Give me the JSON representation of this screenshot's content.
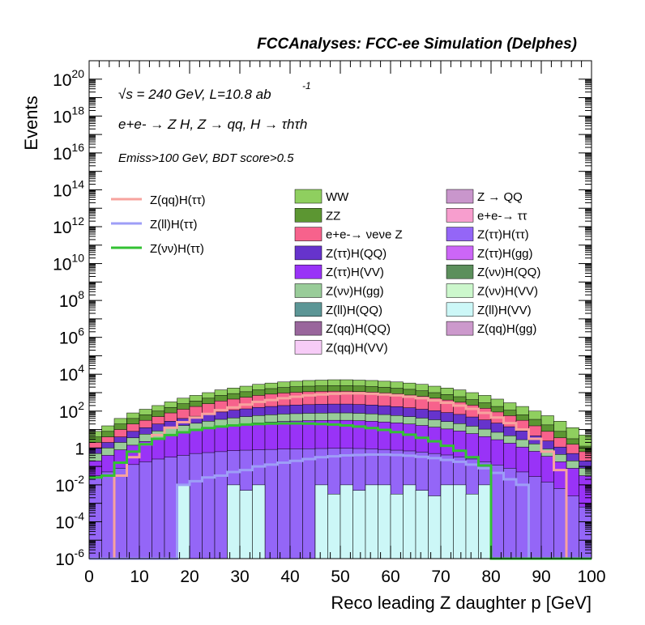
{
  "chart_data": {
    "type": "area",
    "title": "FCCAnalyses: FCC-ee Simulation (Delphes)",
    "xlabel": "Reco leading Z daughter p [GeV]",
    "ylabel": "Events",
    "xlim": [
      0,
      100
    ],
    "ylim": [
      1e-06,
      1e+21
    ],
    "yscale": "log",
    "x_ticks": [
      "0",
      "10",
      "20",
      "30",
      "40",
      "50",
      "60",
      "70",
      "80",
      "90",
      "100"
    ],
    "y_ticks": [
      {
        "base": "10",
        "exp": "-6",
        "value": 1e-06
      },
      {
        "base": "10",
        "exp": "-4",
        "value": 0.0001
      },
      {
        "base": "10",
        "exp": "-2",
        "value": 0.01
      },
      {
        "base": "1",
        "exp": "",
        "value": 1
      },
      {
        "base": "10",
        "exp": "2",
        "value": 100.0
      },
      {
        "base": "10",
        "exp": "4",
        "value": 10000.0
      },
      {
        "base": "10",
        "exp": "6",
        "value": 1000000.0
      },
      {
        "base": "10",
        "exp": "8",
        "value": 100000000.0
      },
      {
        "base": "10",
        "exp": "10",
        "value": 10000000000.0
      },
      {
        "base": "10",
        "exp": "12",
        "value": 1000000000000.0
      },
      {
        "base": "10",
        "exp": "14",
        "value": 100000000000000.0
      },
      {
        "base": "10",
        "exp": "16",
        "value": 1e+16
      },
      {
        "base": "10",
        "exp": "18",
        "value": 1e+18
      },
      {
        "base": "10",
        "exp": "20",
        "value": 1e+20
      }
    ],
    "annotations": {
      "energy": "√s = 240 GeV, L=10.8 ab",
      "energy_exp": "-1",
      "process": "e+e- → Z H, Z → qq, H → τhτh",
      "selection": "Emiss>100 GeV, BDT score>0.5"
    },
    "signal_legend": [
      {
        "name": "Z(qq)H(ττ)",
        "color": "#f7a39e"
      },
      {
        "name": "Z(ll)H(ττ)",
        "color": "#9e9ef7"
      },
      {
        "name": "Z(νν)H(ττ)",
        "color": "#33c133"
      }
    ],
    "background_legend": [
      {
        "name": "WW",
        "color": "#8fcf5f"
      },
      {
        "name": "Z → QQ",
        "color": "#c996cc"
      },
      {
        "name": "ZZ",
        "color": "#5c9632"
      },
      {
        "name": "e+e-→ ττ",
        "color": "#f79ece"
      },
      {
        "name": "e+e-→ νeνe Z",
        "color": "#f7628c"
      },
      {
        "name": "Z(ττ)H(ττ)",
        "color": "#9466f7"
      },
      {
        "name": "Z(ττ)H(QQ)",
        "color": "#6633cc"
      },
      {
        "name": "Z(ττ)H(gg)",
        "color": "#cc66f7"
      },
      {
        "name": "Z(ττ)H(VV)",
        "color": "#9933f7"
      },
      {
        "name": "Z(νν)H(QQ)",
        "color": "#5c8f5c"
      },
      {
        "name": "Z(νν)H(gg)",
        "color": "#99cc99"
      },
      {
        "name": "Z(νν)H(VV)",
        "color": "#ccf7cc"
      },
      {
        "name": "Z(ll)H(QQ)",
        "color": "#5c9696"
      },
      {
        "name": "Z(ll)H(VV)",
        "color": "#ccf7f7"
      },
      {
        "name": "Z(qq)H(QQ)",
        "color": "#99669c"
      },
      {
        "name": "Z(qq)H(gg)",
        "color": "#cc99cc"
      },
      {
        "name": "Z(qq)H(VV)",
        "color": "#f7ccf7"
      }
    ],
    "stack_bands": [
      {
        "name": "WW",
        "color": "#8fcf5f",
        "logtop": [
          0.9,
          1.2,
          1.6,
          1.9,
          2.1,
          2.3,
          2.5,
          2.7,
          2.85,
          3.0,
          3.15,
          3.25,
          3.35,
          3.45,
          3.52,
          3.58,
          3.62,
          3.66,
          3.68,
          3.7,
          3.7,
          3.68,
          3.66,
          3.62,
          3.58,
          3.52,
          3.45,
          3.35,
          3.25,
          3.15,
          3.0,
          2.85,
          2.65,
          2.45,
          2.25,
          2.0,
          1.75,
          1.45,
          1.1,
          0.7
        ]
      },
      {
        "name": "ZZ",
        "color": "#5c9632",
        "logtop": [
          0.6,
          0.9,
          1.3,
          1.6,
          1.8,
          2.0,
          2.2,
          2.4,
          2.55,
          2.7,
          2.85,
          2.95,
          3.05,
          3.15,
          3.22,
          3.28,
          3.32,
          3.35,
          3.37,
          3.38,
          3.38,
          3.36,
          3.33,
          3.29,
          3.24,
          3.18,
          3.1,
          3.0,
          2.9,
          2.78,
          2.62,
          2.45,
          2.25,
          2.05,
          1.8,
          1.55,
          1.25,
          0.9,
          0.5,
          0.1
        ]
      },
      {
        "name": "e+e-→ νeνe Z",
        "color": "#f7628c",
        "logtop": [
          0.3,
          0.6,
          1.0,
          1.3,
          1.5,
          1.7,
          1.9,
          2.1,
          2.25,
          2.4,
          2.55,
          2.65,
          2.75,
          2.85,
          2.92,
          2.98,
          3.02,
          3.05,
          3.07,
          3.08,
          3.08,
          3.06,
          3.03,
          2.99,
          2.94,
          2.87,
          2.8,
          2.7,
          2.6,
          2.48,
          2.32,
          2.15,
          1.95,
          1.75,
          1.5,
          1.2,
          0.9,
          0.55,
          0.2,
          -0.2
        ]
      },
      {
        "name": "Z(ττ)H(QQ)",
        "color": "#6633cc",
        "logtop": [
          0.0,
          0.3,
          0.6,
          0.9,
          1.1,
          1.3,
          1.45,
          1.6,
          1.72,
          1.85,
          1.95,
          2.05,
          2.12,
          2.2,
          2.25,
          2.3,
          2.33,
          2.35,
          2.37,
          2.38,
          2.38,
          2.36,
          2.33,
          2.29,
          2.24,
          2.18,
          2.1,
          2.02,
          1.92,
          1.82,
          1.68,
          1.52,
          1.35,
          1.15,
          0.92,
          0.66,
          0.38,
          0.05,
          -0.3,
          -0.7
        ]
      },
      {
        "name": "Z(νν)H(gg)",
        "color": "#99cc99",
        "logtop": [
          -0.3,
          0.0,
          0.3,
          0.55,
          0.75,
          0.92,
          1.08,
          1.22,
          1.34,
          1.45,
          1.55,
          1.63,
          1.7,
          1.76,
          1.8,
          1.84,
          1.86,
          1.88,
          1.89,
          1.9,
          1.9,
          1.88,
          1.85,
          1.81,
          1.76,
          1.7,
          1.62,
          1.53,
          1.43,
          1.32,
          1.18,
          1.02,
          0.85,
          0.66,
          0.45,
          0.22,
          -0.05,
          -0.35,
          -0.7,
          -1.1
        ]
      },
      {
        "name": "Z(ττ)H(VV)",
        "color": "#9933f7",
        "logtop": [
          -0.7,
          -0.4,
          -0.1,
          0.15,
          0.35,
          0.52,
          0.68,
          0.82,
          0.94,
          1.05,
          1.15,
          1.23,
          1.3,
          1.36,
          1.4,
          1.44,
          1.46,
          1.48,
          1.49,
          1.5,
          1.5,
          1.48,
          1.45,
          1.41,
          1.36,
          1.3,
          1.22,
          1.13,
          1.03,
          0.92,
          0.78,
          0.62,
          0.45,
          0.26,
          0.05,
          -0.18,
          -0.45,
          -0.75,
          -1.1,
          -1.5
        ]
      },
      {
        "name": "Z(ττ)H(ττ)",
        "color": "#9466f7",
        "logtop": [
          -1.5,
          -1.3,
          -1.1,
          -0.9,
          -0.75,
          -0.6,
          -0.5,
          -0.4,
          -0.3,
          -0.25,
          -0.2,
          -0.15,
          -0.12,
          -0.1,
          -0.08,
          -0.06,
          -0.05,
          -0.04,
          -0.03,
          -0.02,
          -0.02,
          -0.03,
          -0.05,
          -0.08,
          -0.12,
          -0.16,
          -0.22,
          -0.3,
          -0.38,
          -0.48,
          -0.6,
          -0.75,
          -0.92,
          -1.1,
          -1.3,
          -1.55,
          -1.85,
          -2.2,
          -2.6,
          -3.2
        ]
      },
      {
        "name": "Z(ll)H(VV)",
        "color": "#ccf7f7",
        "logtop": [
          -6,
          -6,
          -6,
          -6,
          -6,
          -6,
          -6,
          -2,
          -6,
          -6,
          -6,
          -2,
          -2.3,
          -2,
          -6,
          -6,
          -6,
          -6,
          -2,
          -2.5,
          -2,
          -2.3,
          -2,
          -2,
          -2.5,
          -2,
          -2.3,
          -2.6,
          -2,
          -2,
          -2.5,
          -2,
          -6,
          -6,
          -6,
          -6,
          -6,
          -6,
          -6,
          -6
        ]
      }
    ],
    "signal_lines": [
      {
        "name": "Z(qq)H(ττ)",
        "color": "#f7a39e",
        "logy": [
          -6,
          -6,
          -1.5,
          -0.5,
          0.2,
          0.7,
          1.1,
          1.4,
          1.65,
          1.85,
          2.05,
          2.2,
          2.35,
          2.5,
          2.6,
          2.7,
          2.78,
          2.85,
          2.9,
          2.94,
          2.96,
          2.96,
          2.94,
          2.9,
          2.85,
          2.78,
          2.7,
          2.58,
          2.45,
          2.3,
          2.12,
          1.9,
          1.65,
          1.35,
          1.0,
          0.5,
          -0.2,
          -1.2,
          -6,
          -6
        ]
      },
      {
        "name": "Z(ll)H(ττ)",
        "color": "#9e9ef7",
        "logy": [
          -6,
          -6,
          -6,
          -6,
          -6,
          -6,
          -6,
          -2,
          -1.8,
          -1.6,
          -1.5,
          -1.3,
          -1.2,
          -1.0,
          -0.9,
          -0.8,
          -0.7,
          -0.6,
          -0.5,
          -0.45,
          -0.4,
          -0.38,
          -0.36,
          -0.36,
          -0.38,
          -0.42,
          -0.48,
          -0.55,
          -0.65,
          -0.75,
          -0.9,
          -1.1,
          -1.35,
          -1.7,
          -2.0,
          -6,
          -6,
          -6,
          -6,
          -6
        ]
      },
      {
        "name": "Z(νν)H(ττ)",
        "color": "#33c133",
        "logy": [
          -1.6,
          -1.5,
          -0.8,
          -0.2,
          0.2,
          0.5,
          0.7,
          0.85,
          0.98,
          1.08,
          1.16,
          1.22,
          1.27,
          1.3,
          1.32,
          1.33,
          1.33,
          1.32,
          1.3,
          1.27,
          1.22,
          1.16,
          1.08,
          0.98,
          0.86,
          0.72,
          0.55,
          0.36,
          0.12,
          -0.15,
          -0.5,
          -0.95,
          -6,
          -6,
          -6,
          -6,
          -6,
          -6,
          -6,
          -6
        ]
      }
    ]
  }
}
